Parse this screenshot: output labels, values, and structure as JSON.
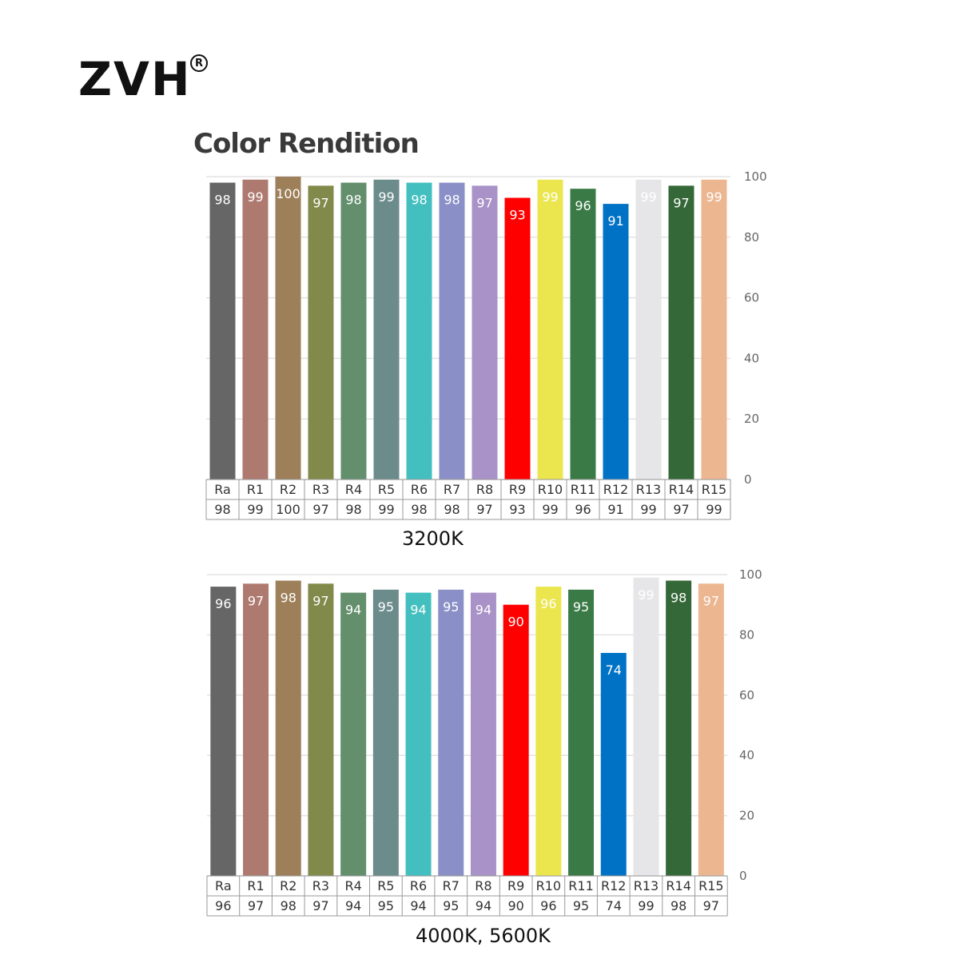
{
  "brand": {
    "name": "ZVH",
    "registered_mark": "R"
  },
  "title": "Color Rendition",
  "colors": {
    "Ra": "#666666",
    "R1": "#ae7a70",
    "R2": "#9d7f59",
    "R3": "#818a4a",
    "R4": "#638f6d",
    "R5": "#6b8c8b",
    "R6": "#43bfbf",
    "R7": "#8a90c7",
    "R8": "#a992c7",
    "R9": "#ff0000",
    "R10": "#ebe64e",
    "R11": "#3a7a46",
    "R12": "#0072c6",
    "R13": "#e6e6e8",
    "R14": "#356838",
    "R15": "#ebb690",
    "grid": "#e3e3e3",
    "table_border": "#9a9a9a",
    "axis_text": "#666666"
  },
  "chart_data": [
    {
      "type": "bar",
      "title": "3200K",
      "categories": [
        "Ra",
        "R1",
        "R2",
        "R3",
        "R4",
        "R5",
        "R6",
        "R7",
        "R8",
        "R9",
        "R10",
        "R11",
        "R12",
        "R13",
        "R14",
        "R15"
      ],
      "values": [
        98,
        99,
        100,
        97,
        98,
        99,
        98,
        98,
        97,
        93,
        99,
        96,
        91,
        99,
        97,
        99
      ],
      "ylim": [
        0,
        100
      ],
      "yticks": [
        0,
        20,
        40,
        60,
        80,
        100
      ],
      "ytick_labels": [
        "0",
        "20",
        "40",
        "60",
        "80",
        "100"
      ],
      "yaxis_side": "right",
      "grid": true,
      "data_table": true
    },
    {
      "type": "bar",
      "title": "4000K, 5600K",
      "categories": [
        "Ra",
        "R1",
        "R2",
        "R3",
        "R4",
        "R5",
        "R6",
        "R7",
        "R8",
        "R9",
        "R10",
        "R11",
        "R12",
        "R13",
        "R14",
        "R15"
      ],
      "values": [
        96,
        97,
        98,
        97,
        94,
        95,
        94,
        95,
        94,
        90,
        96,
        95,
        74,
        99,
        98,
        97
      ],
      "ylim": [
        0,
        100
      ],
      "yticks": [
        0,
        20,
        40,
        60,
        80,
        100
      ],
      "ytick_labels": [
        "0",
        "20",
        "40",
        "60",
        "80",
        "100"
      ],
      "yaxis_side": "right",
      "grid": true,
      "data_table": true
    }
  ]
}
